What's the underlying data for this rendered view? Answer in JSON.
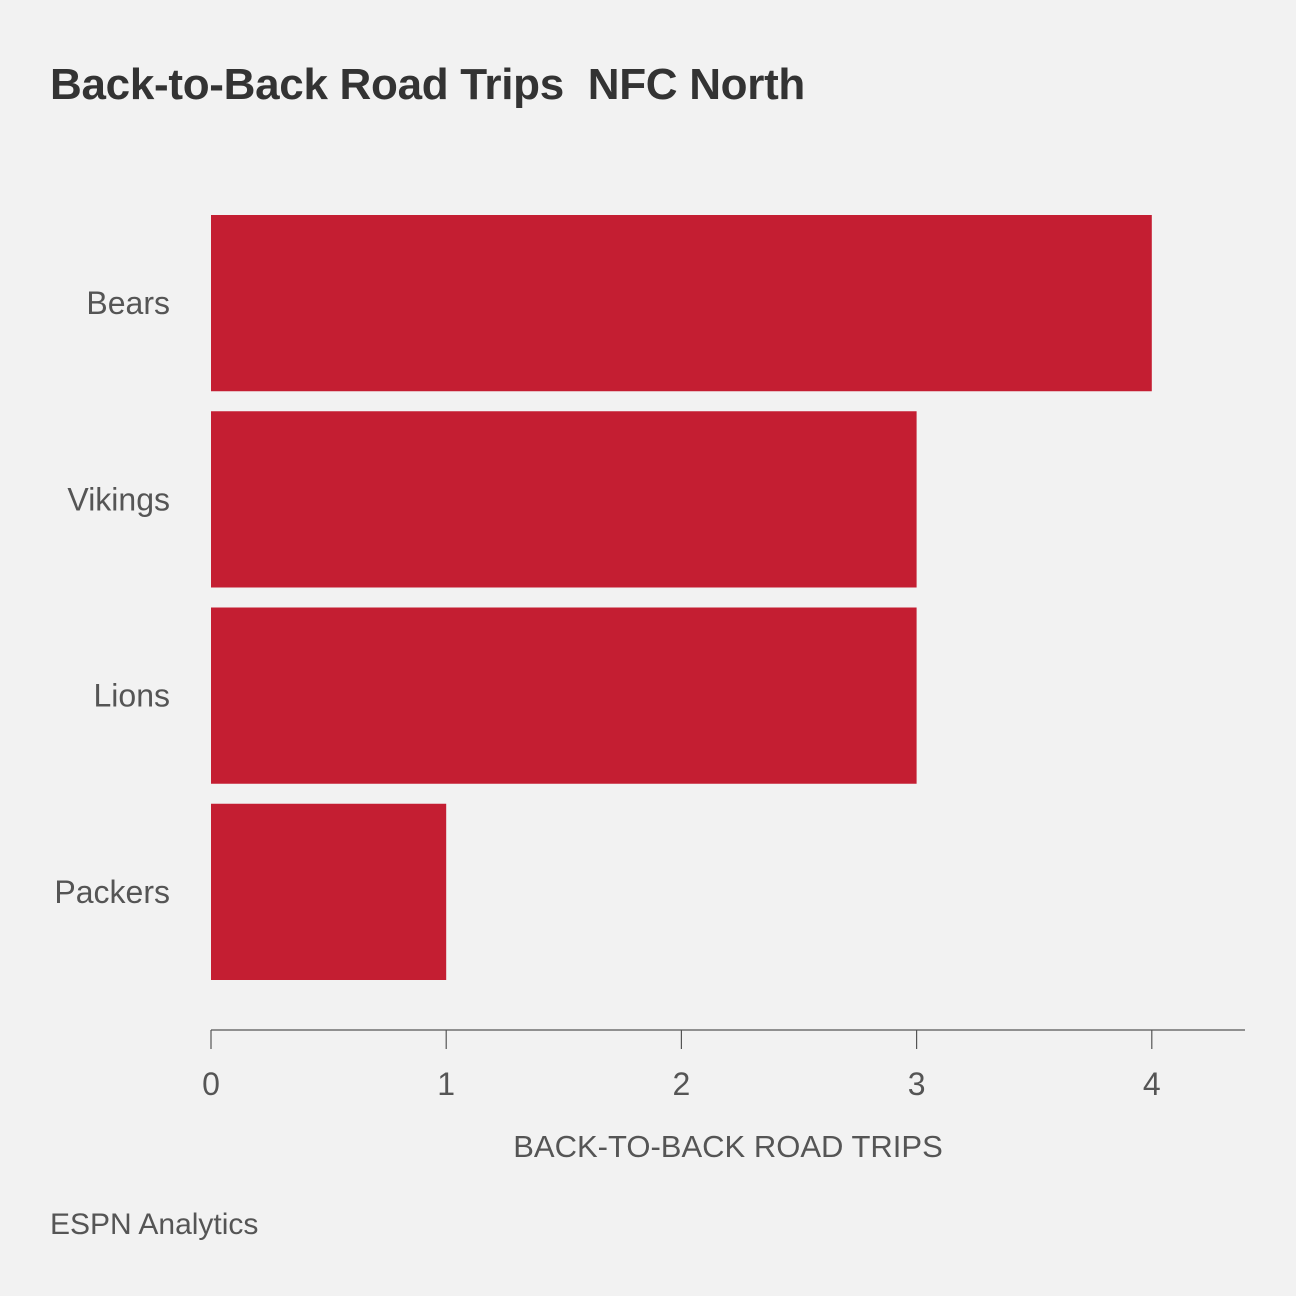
{
  "title": "Back-to-Back Road Trips  NFC North",
  "source": "ESPN Analytics",
  "colors": {
    "bar": "#c41e32",
    "background": "#f2f2f2",
    "axis": "#555555"
  },
  "chart_data": {
    "type": "bar",
    "orientation": "horizontal",
    "title": "Back-to-Back Road Trips  NFC North",
    "xlabel": "BACK-TO-BACK ROAD TRIPS",
    "ylabel": "",
    "categories": [
      "Bears",
      "Vikings",
      "Lions",
      "Packers"
    ],
    "values": [
      4,
      3,
      3,
      1
    ],
    "xlim": [
      0,
      4.4
    ],
    "xticks": [
      0,
      1,
      2,
      3,
      4
    ],
    "grid": false,
    "legend": "none"
  }
}
